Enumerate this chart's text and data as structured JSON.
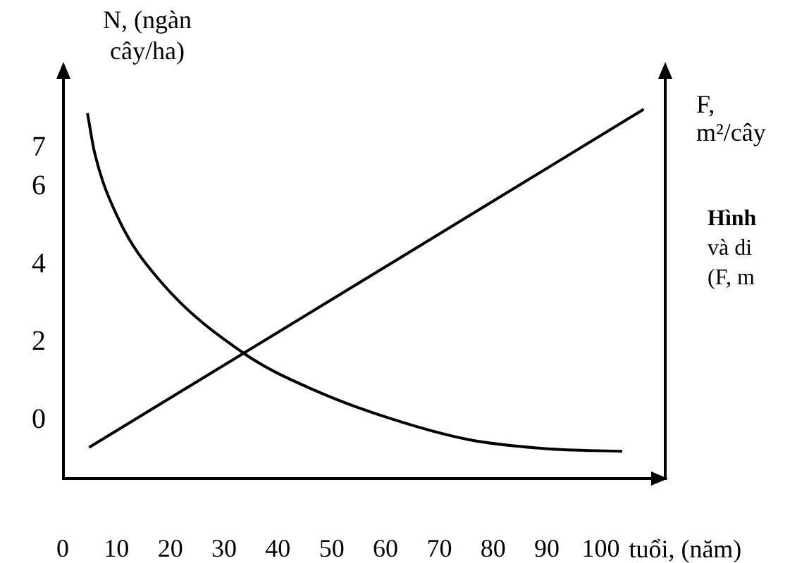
{
  "chart_data": {
    "type": "line",
    "ylabel": "N, (ngàn cây/ha)",
    "y2label": "F, m²/cây",
    "xlabel": "tuổi, (năm)",
    "xlim": [
      0,
      112
    ],
    "xticks": [
      0,
      10,
      20,
      30,
      40,
      50,
      60,
      70,
      80,
      90,
      100
    ],
    "ylim": [
      -1.5,
      9
    ],
    "yticks": [
      0,
      2,
      4,
      6,
      7
    ],
    "series": [
      {
        "color": "#000000",
        "x": [
          4.6,
          5.9,
          10.3,
          18,
          33.9,
          47,
          61,
          75.5,
          89.7,
          104
        ],
        "values": [
          7.9,
          6.9,
          5.2,
          3.6,
          1.7,
          0.76,
          0.04,
          -0.5,
          -0.73,
          -0.8
        ]
      },
      {
        "color": "#000000",
        "x": [
          4.9,
          108
        ],
        "values": [
          -0.7,
          8.0
        ]
      }
    ],
    "marker": "none",
    "line_style": "solid",
    "grid": false,
    "annotations": [
      "Hình",
      "và di",
      "(F, m"
    ]
  }
}
